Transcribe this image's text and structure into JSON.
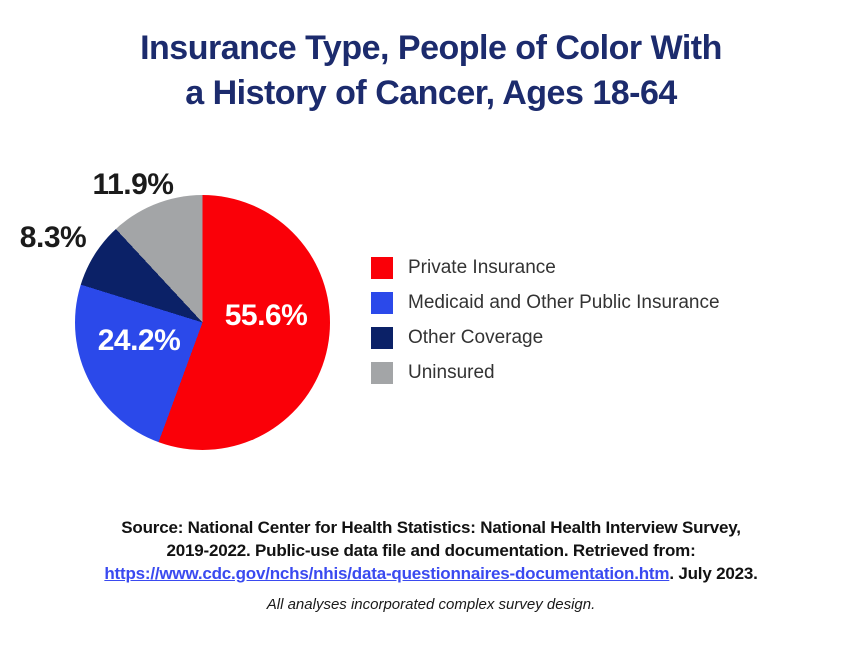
{
  "title": {
    "lines": [
      "Insurance Type, People of Color With",
      "a History of Cancer, Ages 18-64"
    ],
    "color": "#1c2b6d"
  },
  "chart_data": {
    "type": "pie",
    "title": "Insurance Type, People of Color With a History of Cancer, Ages 18-64",
    "start_angle_deg": 0,
    "direction": "clockwise",
    "legend_position": "right",
    "slices": [
      {
        "label": "Private Insurance",
        "value": 55.6,
        "display": "55.6%",
        "color": "#fa0008",
        "label_placement": "inside",
        "label_color": "#ffffff"
      },
      {
        "label": "Medicaid and Other Public Insurance",
        "value": 24.2,
        "display": "24.2%",
        "color": "#2b49ea",
        "label_placement": "inside",
        "label_color": "#ffffff"
      },
      {
        "label": "Other Coverage",
        "value": 8.3,
        "display": "8.3%",
        "color": "#0b2167",
        "label_placement": "outside",
        "label_color": "#1b1b1b"
      },
      {
        "label": "Uninsured",
        "value": 11.9,
        "display": "11.9%",
        "color": "#a3a5a7",
        "label_placement": "outside",
        "label_color": "#1b1b1b"
      }
    ]
  },
  "source": {
    "line1": "Source: National Center for Health Statistics: National Health Interview Survey,",
    "line2": "2019-2022. Public-use data file and documentation. Retrieved from:",
    "link_text": "https://www.cdc.gov/nchs/nhis/data-questionnaires-documentation.htm",
    "line3_suffix": ". July 2023.",
    "link_color": "#3a4af0",
    "note": "All analyses incorporated complex survey design."
  }
}
